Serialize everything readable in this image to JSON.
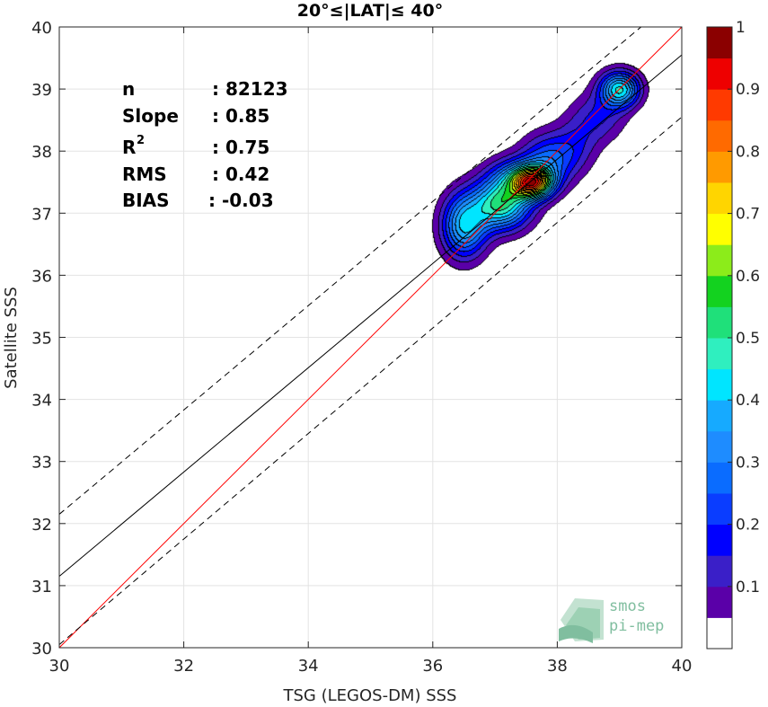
{
  "chart_data": {
    "type": "heatmap",
    "title": "20°≤|LAT|≤ 40°",
    "xlabel": "TSG (LEGOS-DM) SSS",
    "ylabel": "Satellite SSS",
    "xlim": [
      30,
      40
    ],
    "ylim": [
      30,
      40
    ],
    "xticks": [
      "30",
      "32",
      "34",
      "36",
      "38",
      "40"
    ],
    "yticks": [
      "30",
      "31",
      "32",
      "33",
      "34",
      "35",
      "36",
      "37",
      "38",
      "39",
      "40"
    ],
    "grid": true,
    "stats": [
      {
        "label": "n",
        "value": ": 82123"
      },
      {
        "label": "Slope",
        "value": ": 0.85"
      },
      {
        "label": "R",
        "sup": "2",
        "value": ": 0.75"
      },
      {
        "label": "RMS",
        "value": ": 0.42"
      },
      {
        "label": "BIAS",
        "value": ": -0.03"
      }
    ],
    "reference_lines": [
      {
        "name": "one-to-one",
        "color": "#ff0000",
        "style": "solid",
        "points": [
          [
            30,
            30
          ],
          [
            40,
            40
          ]
        ]
      },
      {
        "name": "regression",
        "color": "#000000",
        "style": "solid",
        "points": [
          [
            30,
            31.15
          ],
          [
            40,
            39.55
          ]
        ]
      },
      {
        "name": "upper-bound",
        "color": "#000000",
        "style": "dashed",
        "points": [
          [
            30,
            32.15
          ],
          [
            40,
            40.55
          ]
        ]
      },
      {
        "name": "lower-bound",
        "color": "#000000",
        "style": "dashed",
        "points": [
          [
            30,
            30.05
          ],
          [
            40,
            38.55
          ]
        ]
      }
    ],
    "density_blobs": [
      {
        "x": 36.5,
        "y": 36.8,
        "sx": 0.25,
        "sy": 0.35,
        "w": 0.55
      },
      {
        "x": 37.1,
        "y": 37.15,
        "sx": 0.32,
        "sy": 0.28,
        "w": 0.7
      },
      {
        "x": 37.6,
        "y": 37.5,
        "sx": 0.22,
        "sy": 0.17,
        "w": 1.0
      },
      {
        "x": 37.85,
        "y": 37.85,
        "sx": 0.3,
        "sy": 0.3,
        "w": 0.35
      },
      {
        "x": 37.3,
        "y": 37.6,
        "sx": 0.3,
        "sy": 0.22,
        "w": 0.3
      },
      {
        "x": 39.0,
        "y": 39.0,
        "sx": 0.22,
        "sy": 0.2,
        "w": 0.62
      },
      {
        "x": 38.65,
        "y": 38.55,
        "sx": 0.3,
        "sy": 0.28,
        "w": 0.2
      },
      {
        "x": 38.3,
        "y": 38.1,
        "sx": 0.25,
        "sy": 0.3,
        "w": 0.15
      }
    ],
    "colorbar": {
      "levels": [
        0.05,
        0.1,
        0.15,
        0.2,
        0.25,
        0.3,
        0.35,
        0.4,
        0.45,
        0.5,
        0.55,
        0.6,
        0.65,
        0.7,
        0.75,
        0.8,
        0.85,
        0.9,
        0.95
      ],
      "colors": [
        "#ffffff",
        "#5a00a8",
        "#3a1fc8",
        "#0000ff",
        "#0a3dff",
        "#0a6cff",
        "#1e8cff",
        "#16aaff",
        "#00e5ff",
        "#2fefbf",
        "#1fe07a",
        "#13d21f",
        "#8cec1a",
        "#ffff00",
        "#ffd500",
        "#ff9a00",
        "#ff6a00",
        "#ff3a00",
        "#ee0000",
        "#8b0000"
      ],
      "tick_labels": [
        "0.1",
        "0.2",
        "0.3",
        "0.4",
        "0.5",
        "0.6",
        "0.7",
        "0.8",
        "0.9",
        "1"
      ],
      "tick_values": [
        0.1,
        0.2,
        0.3,
        0.4,
        0.5,
        0.6,
        0.7,
        0.8,
        0.9,
        1.0
      ],
      "range": [
        0,
        1
      ]
    }
  },
  "logo": {
    "line1": "smos",
    "line2": "pi-mep"
  }
}
